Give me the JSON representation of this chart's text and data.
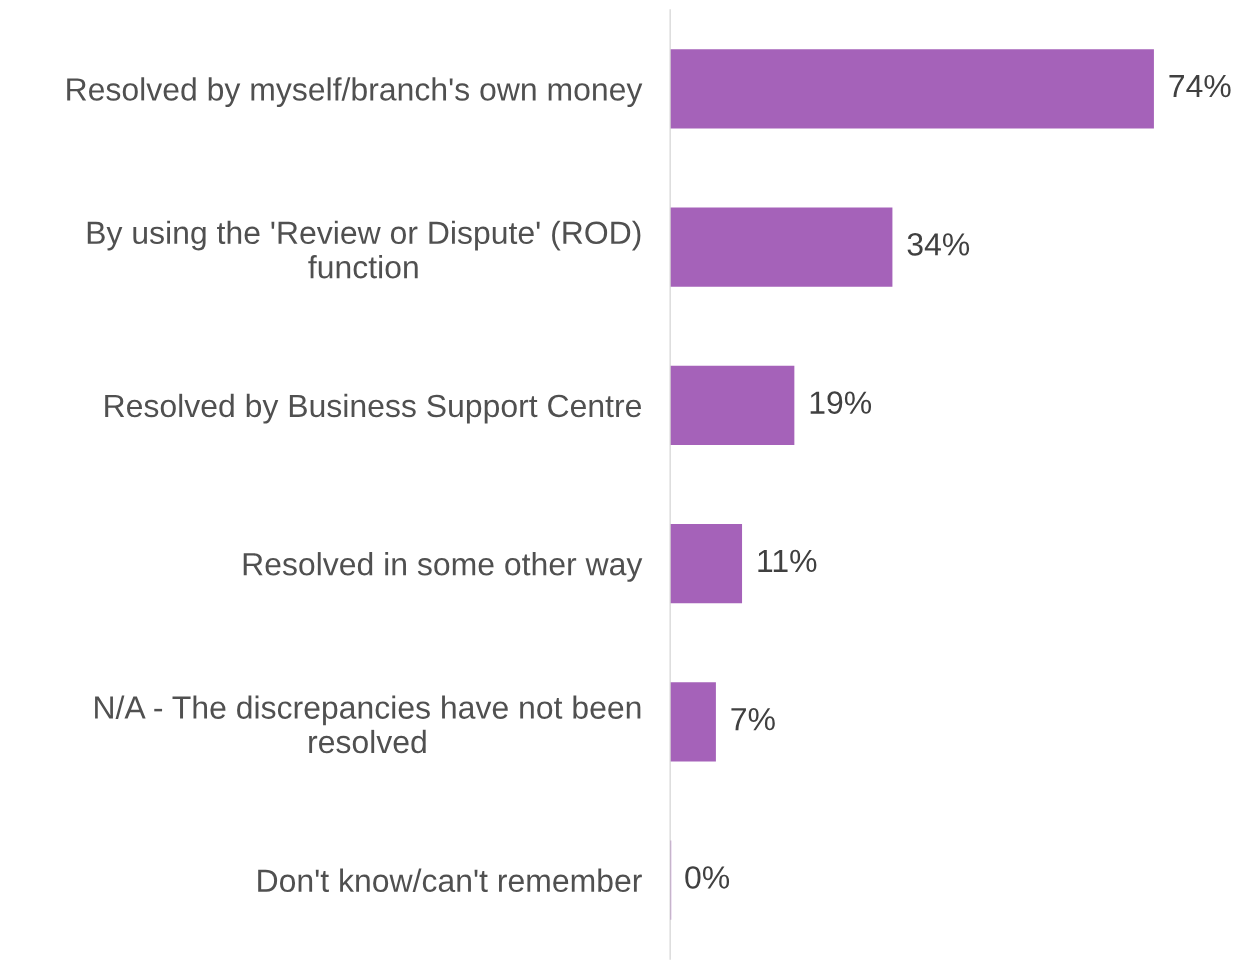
{
  "chart_data": {
    "type": "bar",
    "orientation": "horizontal",
    "categories": [
      "Resolved by myself/branch's own money",
      "By using the 'Review or Dispute' (ROD)\nfunction",
      "Resolved by Business Support Centre",
      "Resolved in some other way",
      "N/A - The discrepancies have not been\nresolved",
      "Don't know/can't remember"
    ],
    "values": [
      74,
      34,
      19,
      11,
      7,
      0
    ],
    "value_labels": [
      "74%",
      "34%",
      "19%",
      "11%",
      "7%",
      "0%"
    ],
    "color": "#a562b9",
    "grid": false,
    "legend": false,
    "tick_labels": "y"
  }
}
